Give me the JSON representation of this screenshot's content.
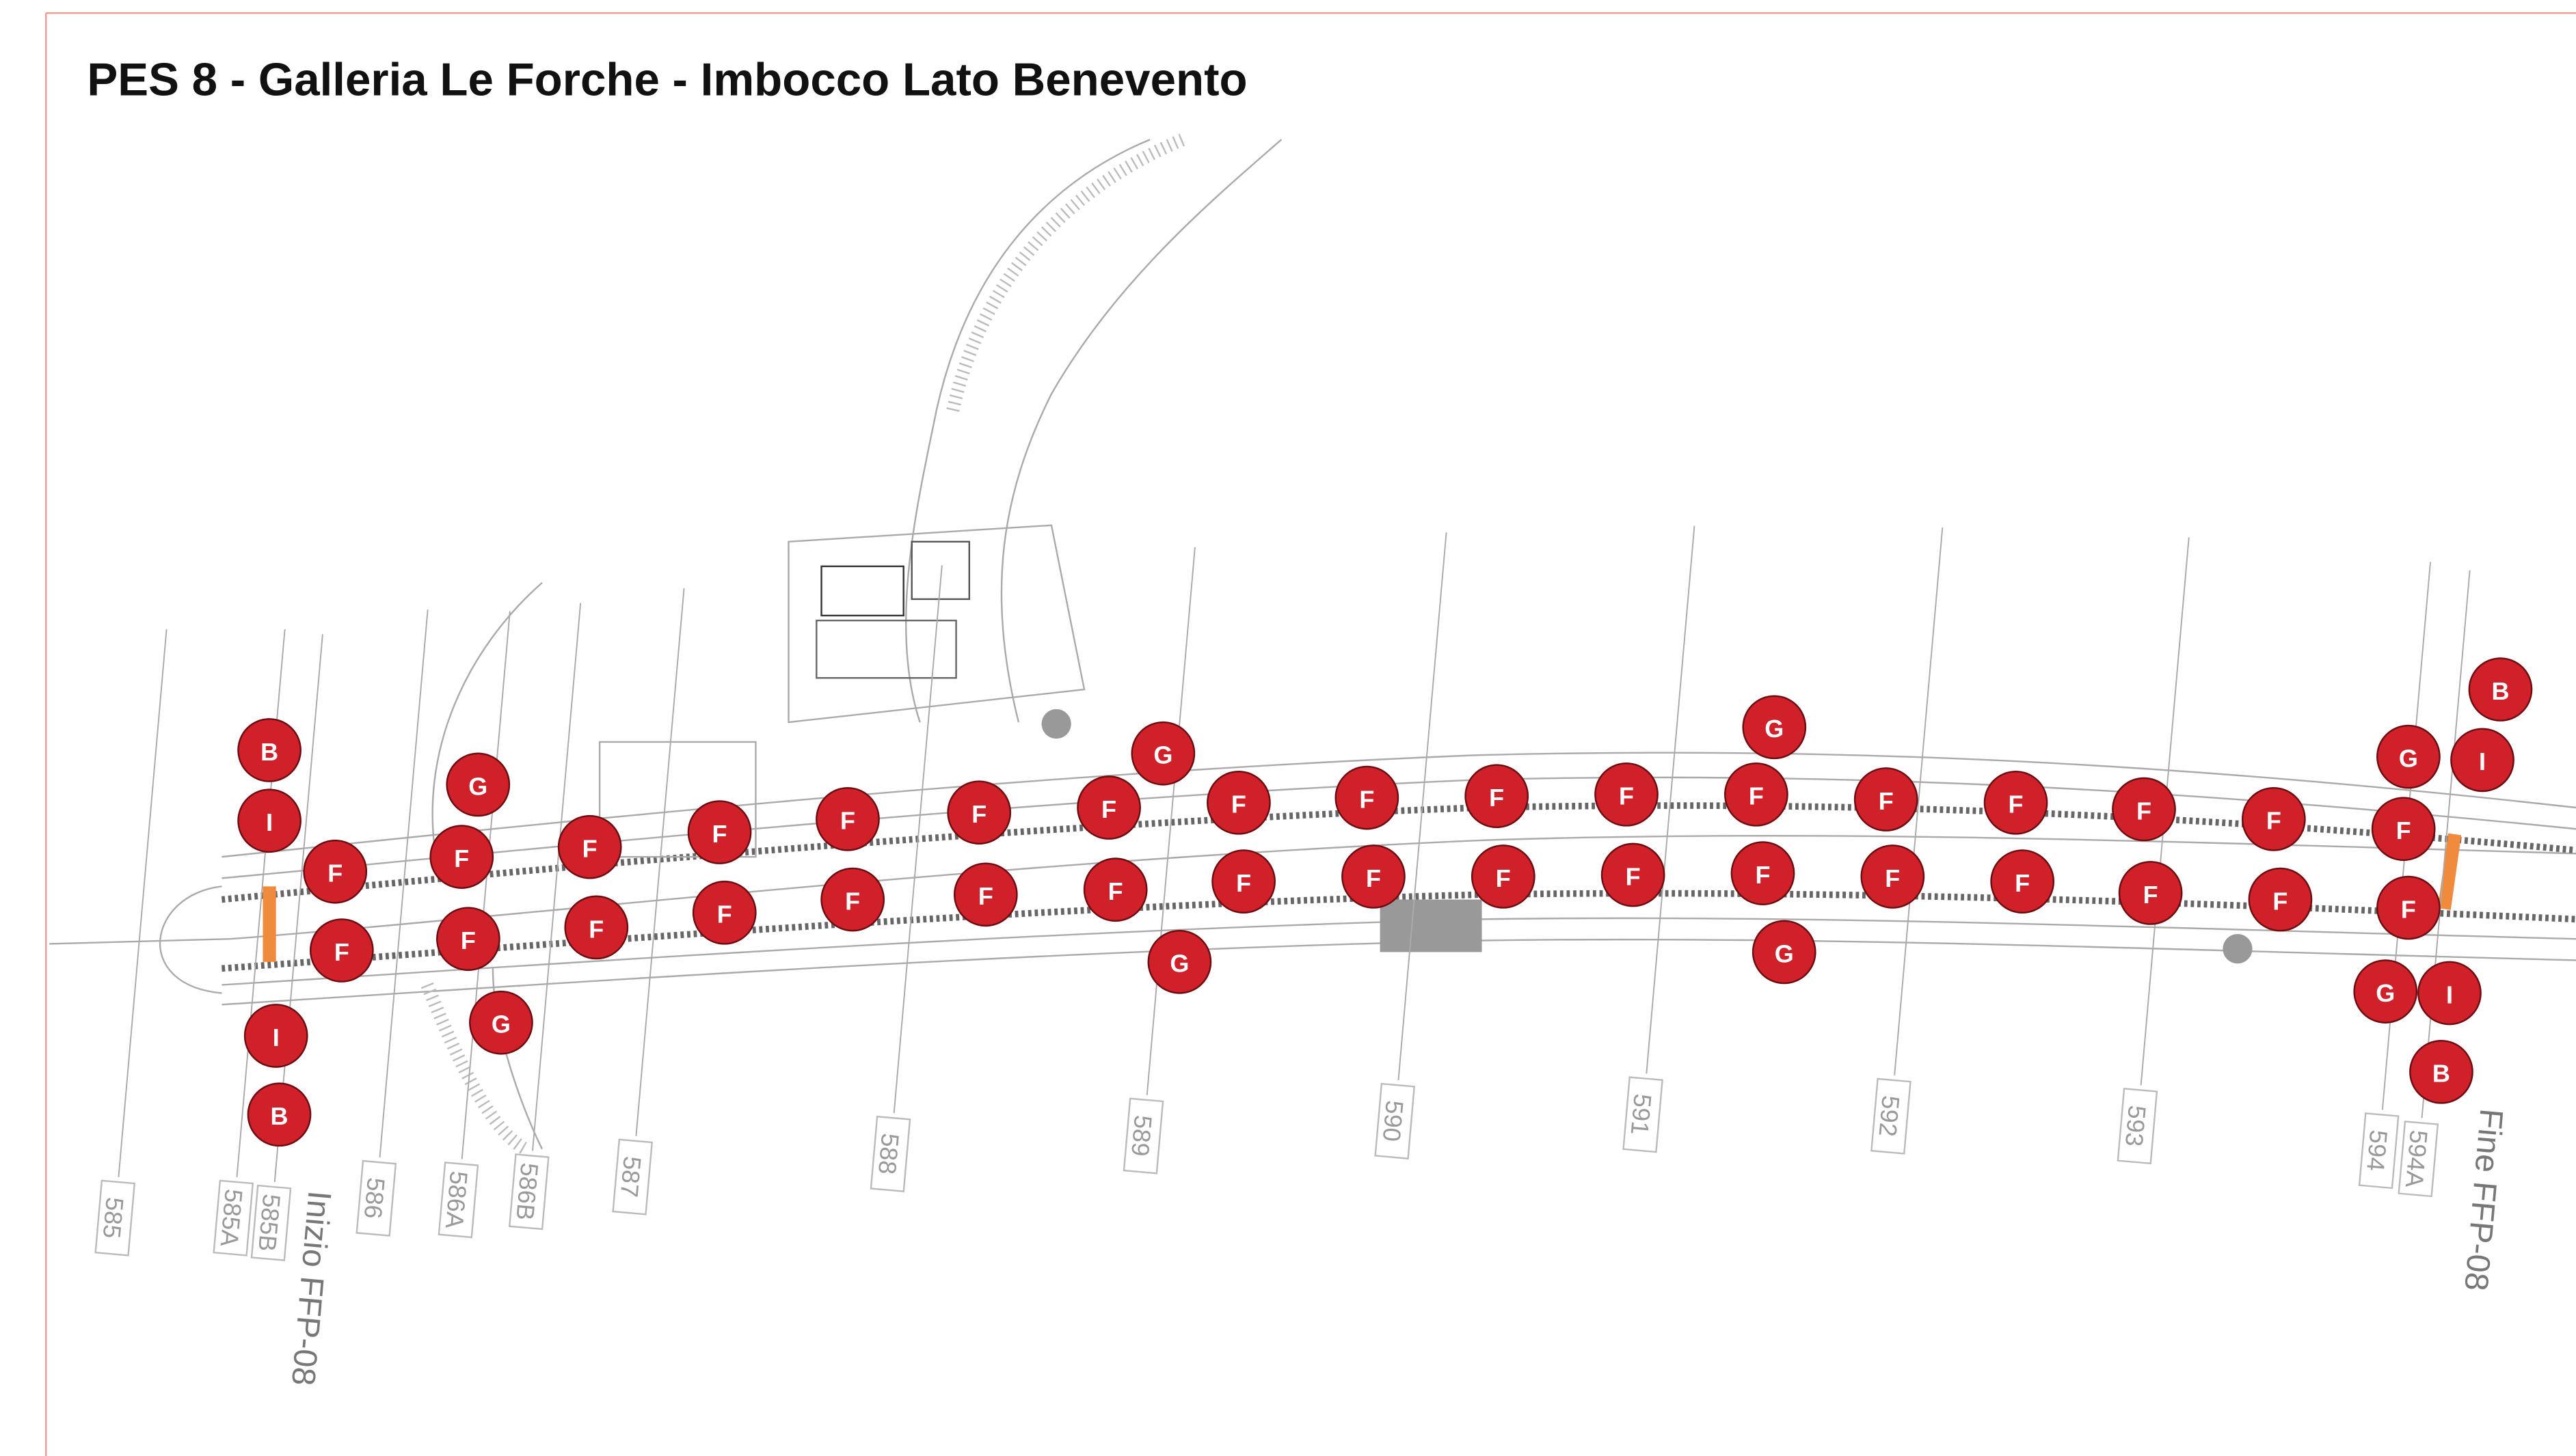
{
  "header": {
    "title": "PES 8 - Galleria Le Forche - Imbocco Lato Benevento"
  },
  "sections": [
    "585",
    "585A",
    "585B",
    "586",
    "586A",
    "586B",
    "587",
    "588",
    "589",
    "590",
    "591",
    "592",
    "593",
    "594",
    "594A"
  ],
  "annotations": {
    "start": "Inizio FFP-08",
    "end": "Fine FFP-08"
  },
  "markers": [
    "B",
    "I",
    "F",
    "F",
    "I",
    "B",
    "G",
    "F",
    "F",
    "G",
    "F",
    "F",
    "F",
    "F",
    "F",
    "F",
    "F",
    "F",
    "F",
    "F",
    "F",
    "F",
    "F",
    "F",
    "F",
    "F",
    "F",
    "F",
    "F",
    "F",
    "F",
    "F",
    "F",
    "F",
    "F",
    "F",
    "F",
    "F",
    "F",
    "F",
    "G",
    "G",
    "G",
    "G",
    "G",
    "G",
    "I",
    "I",
    "B",
    "B"
  ]
}
